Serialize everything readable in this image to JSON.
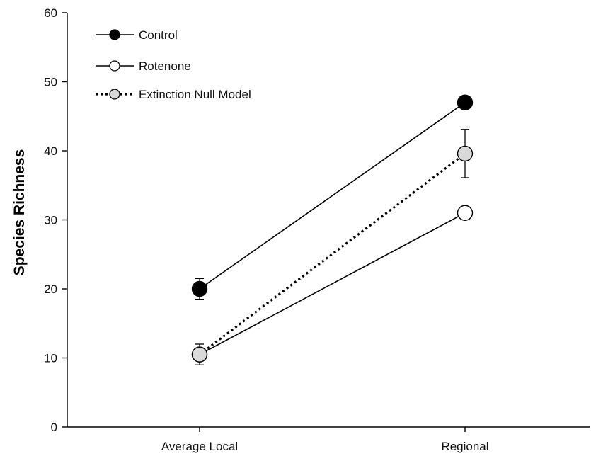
{
  "chart_data": {
    "type": "line",
    "title": "",
    "xlabel": "",
    "ylabel": "Species Richness",
    "categories": [
      "Average Local",
      "Regional"
    ],
    "ylim": [
      0,
      60
    ],
    "yticks": [
      0,
      10,
      20,
      30,
      40,
      50,
      60
    ],
    "grid": false,
    "legend_position": "top-left",
    "series": [
      {
        "name": "Control",
        "values": [
          20,
          47
        ],
        "errors": [
          1.5,
          0
        ],
        "line_style": "solid",
        "marker_fill": "#000000",
        "marker_stroke": "#000000",
        "marker_size": "large"
      },
      {
        "name": "Rotenone",
        "values": [
          10.5,
          31
        ],
        "errors": [
          0,
          0
        ],
        "line_style": "solid",
        "marker_fill": "#ffffff",
        "marker_stroke": "#000000",
        "marker_size": "large"
      },
      {
        "name": "Extinction Null Model",
        "values": [
          10.5,
          39.6
        ],
        "errors": [
          1.5,
          3.5
        ],
        "line_style": "dotted",
        "marker_fill": "#d9d9d9",
        "marker_stroke": "#000000",
        "marker_size": "large"
      }
    ]
  }
}
